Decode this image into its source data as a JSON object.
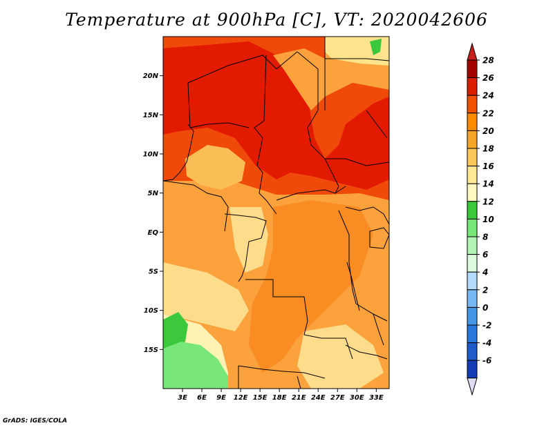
{
  "title": "Temperature at 900hPa [C], VT: 2020042606",
  "credit": "GrADS: IGES/COLA",
  "map": {
    "lon_range": [
      0,
      35
    ],
    "lat_range": [
      -20,
      25
    ],
    "lat_ticks": [
      {
        "value": 20,
        "label": "20N"
      },
      {
        "value": 15,
        "label": "15N"
      },
      {
        "value": 10,
        "label": "10N"
      },
      {
        "value": 5,
        "label": "5N"
      },
      {
        "value": 0,
        "label": "EQ"
      },
      {
        "value": -5,
        "label": "5S"
      },
      {
        "value": -10,
        "label": "10S"
      },
      {
        "value": -15,
        "label": "15S"
      }
    ],
    "lon_ticks": [
      {
        "value": 3,
        "label": "3E"
      },
      {
        "value": 6,
        "label": "6E"
      },
      {
        "value": 9,
        "label": "9E"
      },
      {
        "value": 12,
        "label": "12E"
      },
      {
        "value": 15,
        "label": "15E"
      },
      {
        "value": 18,
        "label": "18E"
      },
      {
        "value": 21,
        "label": "21E"
      },
      {
        "value": 24,
        "label": "24E"
      },
      {
        "value": 27,
        "label": "27E"
      },
      {
        "value": 30,
        "label": "30E"
      },
      {
        "value": 33,
        "label": "33E"
      }
    ]
  },
  "colorbar": {
    "levels": [
      {
        "label": "28",
        "color": "#a50000"
      },
      {
        "label": "26",
        "color": "#dc1e00"
      },
      {
        "label": "24",
        "color": "#f05000"
      },
      {
        "label": "22",
        "color": "#fa8c00"
      },
      {
        "label": "20",
        "color": "#f5a528"
      },
      {
        "label": "18",
        "color": "#fac85a"
      },
      {
        "label": "16",
        "color": "#fde896"
      },
      {
        "label": "14",
        "color": "#fff8c0"
      },
      {
        "label": "12",
        "color": "#3cc83c"
      },
      {
        "label": "10",
        "color": "#78e678"
      },
      {
        "label": "8",
        "color": "#b4f4b4"
      },
      {
        "label": "6",
        "color": "#dcfadc"
      },
      {
        "label": "4",
        "color": "#b4dcfa"
      },
      {
        "label": "2",
        "color": "#78b8f0"
      },
      {
        "label": "0",
        "color": "#4696e6"
      },
      {
        "label": "-2",
        "color": "#2878dc"
      },
      {
        "label": "-4",
        "color": "#1e5ac8"
      },
      {
        "label": "-6",
        "color": "#143cb4"
      },
      {
        "label": "",
        "color": "#0a1e96"
      }
    ],
    "over_color": "#c81e1e",
    "under_color": "#dcdcf5"
  },
  "colors": {
    "t28": "#e11a00",
    "t26": "#f04a0a",
    "t24": "#fa7d14",
    "t22": "#fba23c",
    "t20": "#fbbd55",
    "t18": "#fddc8c",
    "t16": "#fef2b4",
    "t12": "#3cc83c",
    "t10": "#78e678",
    "border": "#000000"
  }
}
